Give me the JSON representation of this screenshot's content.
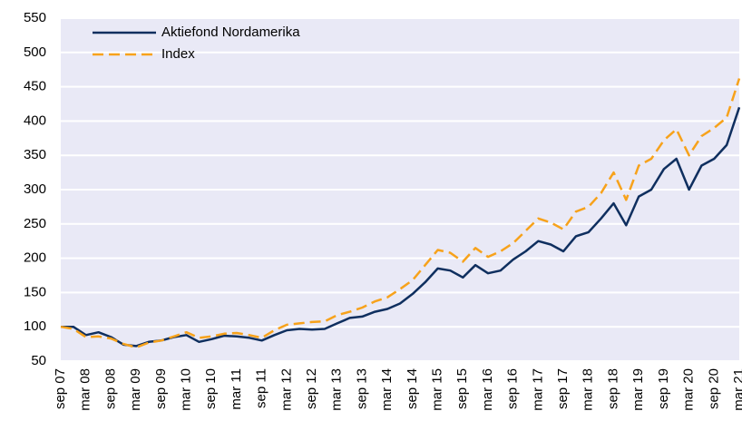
{
  "chart_data": {
    "type": "line",
    "categories": [
      "sep 07",
      null,
      "mar 08",
      null,
      "sep 08",
      null,
      "mar 09",
      null,
      "sep 09",
      null,
      "mar 10",
      null,
      "sep 10",
      null,
      "mar 11",
      null,
      "sep 11",
      null,
      "mar 12",
      null,
      "sep 12",
      null,
      "mar 13",
      null,
      "sep 13",
      null,
      "mar 14",
      null,
      "sep 14",
      null,
      "mar 15",
      null,
      "sep 15",
      null,
      "mar 16",
      null,
      "sep 16",
      null,
      "mar 17",
      null,
      "sep 17",
      null,
      "mar 18",
      null,
      "sep 18",
      null,
      "mar 19",
      null,
      "sep 19",
      null,
      "mar 20",
      null,
      "sep 20",
      null,
      "mar 21"
    ],
    "series": [
      {
        "name": "Aktiefond Nordamerika",
        "color": "#0f2f5f",
        "dash": false,
        "values": [
          100,
          100,
          88,
          92,
          85,
          74,
          72,
          78,
          80,
          85,
          88,
          78,
          82,
          87,
          86,
          84,
          80,
          88,
          95,
          97,
          96,
          97,
          105,
          113,
          115,
          122,
          126,
          134,
          148,
          165,
          185,
          182,
          172,
          190,
          178,
          182,
          198,
          210,
          225,
          220,
          210,
          232,
          238,
          258,
          280,
          248,
          290,
          300,
          330,
          345,
          300,
          335,
          345,
          365,
          420
        ]
      },
      {
        "name": "Index",
        "color": "#f7a21b",
        "dash": true,
        "values": [
          100,
          97,
          85,
          86,
          83,
          75,
          70,
          77,
          80,
          86,
          92,
          84,
          86,
          90,
          91,
          88,
          84,
          95,
          103,
          105,
          107,
          108,
          117,
          122,
          128,
          137,
          143,
          155,
          168,
          190,
          212,
          208,
          195,
          215,
          202,
          210,
          222,
          240,
          258,
          252,
          242,
          268,
          275,
          295,
          325,
          285,
          335,
          345,
          372,
          388,
          350,
          378,
          390,
          405,
          462
        ]
      }
    ],
    "ylim": [
      50,
      550
    ],
    "yticks": [
      50,
      100,
      150,
      200,
      250,
      300,
      350,
      400,
      450,
      500,
      550
    ],
    "grid": true,
    "background": "#e9e9f6",
    "legend": "top-left"
  }
}
